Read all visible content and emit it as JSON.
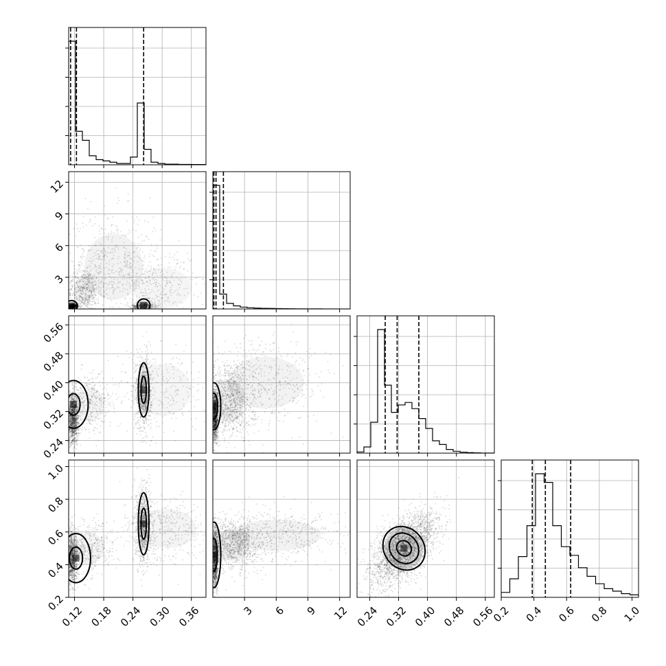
{
  "chart_data": {
    "type": "corner",
    "parameters": [
      {
        "ticks": [
          0.12,
          0.18,
          0.24,
          0.3,
          0.36
        ],
        "tick_labels": [
          "0.12",
          "0.18",
          "0.24",
          "0.30",
          "0.36"
        ],
        "range": [
          0.108,
          0.39
        ]
      },
      {
        "ticks": [
          3,
          6,
          9,
          12
        ],
        "tick_labels": [
          "3",
          "6",
          "9",
          "12"
        ],
        "range": [
          0.0,
          13.0
        ]
      },
      {
        "ticks": [
          0.24,
          0.32,
          0.4,
          0.48,
          0.56
        ],
        "tick_labels": [
          "0.24",
          "0.32",
          "0.40",
          "0.48",
          "0.56"
        ],
        "range": [
          0.205,
          0.585
        ]
      },
      {
        "ticks": [
          0.2,
          0.4,
          0.6,
          0.8,
          1.0
        ],
        "tick_labels": [
          "0.2",
          "0.4",
          "0.6",
          "0.8",
          "1.0"
        ],
        "range": [
          0.2,
          1.04
        ]
      }
    ],
    "histograms": [
      {
        "param": 0,
        "bin_edges_range": [
          0.108,
          0.39
        ],
        "counts": [
          96,
          26,
          19,
          7,
          4,
          3,
          2,
          1,
          1,
          6,
          48,
          12,
          2,
          1,
          0.5,
          0.5,
          0.3,
          0.3,
          0.2,
          0.2
        ],
        "quantiles": [
          0.112,
          0.124,
          0.262
        ]
      },
      {
        "param": 1,
        "bin_edges_range": [
          0.0,
          13.0
        ],
        "counts": [
          100,
          12,
          4.5,
          2.5,
          1.5,
          1.0,
          0.7,
          0.5,
          0.4,
          0.3,
          0.2,
          0.15,
          0.1,
          0.08,
          0.06,
          0.05,
          0.04,
          0.03,
          0.02,
          0.02
        ],
        "quantiles": [
          0.1,
          0.3,
          1.0
        ]
      },
      {
        "param": 2,
        "bin_edges_range": [
          0.205,
          0.585
        ],
        "counts": [
          1,
          5,
          25,
          100,
          55,
          33,
          39,
          41,
          36,
          28,
          20,
          10,
          7,
          3,
          1.5,
          0.8,
          0.4,
          0.2,
          0.1,
          0.1
        ],
        "quantiles": [
          0.283,
          0.316,
          0.376
        ]
      },
      {
        "param": 3,
        "bin_edges_range": [
          0.2,
          1.04
        ],
        "counts": [
          4,
          15,
          33,
          58,
          100,
          93,
          58,
          41,
          34,
          24,
          17,
          11,
          7,
          5,
          3,
          2
        ],
        "quantiles": [
          0.39,
          0.47,
          0.625
        ]
      }
    ],
    "pairs": [
      {
        "x": 0,
        "y": 1,
        "clusters": [
          {
            "cx": 0.115,
            "cy": 0.25,
            "sx": 0.006,
            "sy": 0.12,
            "weight": 0.3
          },
          {
            "cx": 0.14,
            "cy": 1.8,
            "sx": 0.018,
            "sy": 1.1,
            "weight": 0.2
          },
          {
            "cx": 0.2,
            "cy": 4.0,
            "sx": 0.05,
            "sy": 2.6,
            "weight": 0.22
          },
          {
            "cx": 0.262,
            "cy": 0.25,
            "sx": 0.012,
            "sy": 0.2,
            "weight": 0.18
          },
          {
            "cx": 0.3,
            "cy": 2.0,
            "sx": 0.05,
            "sy": 1.6,
            "weight": 0.1
          }
        ],
        "contours": [
          {
            "cx": 0.114,
            "cy": 0.3,
            "rx": 0.012,
            "ry": 0.5,
            "levels": [
              1.0
            ]
          },
          {
            "cx": 0.262,
            "cy": 0.35,
            "rx": 0.013,
            "ry": 0.6,
            "levels": [
              1.0
            ]
          }
        ]
      },
      {
        "x": 0,
        "y": 2,
        "clusters": [
          {
            "cx": 0.117,
            "cy": 0.3,
            "sx": 0.006,
            "sy": 0.035,
            "weight": 0.45
          },
          {
            "cx": 0.15,
            "cy": 0.34,
            "sx": 0.025,
            "sy": 0.04,
            "weight": 0.15
          },
          {
            "cx": 0.262,
            "cy": 0.375,
            "sx": 0.008,
            "sy": 0.05,
            "weight": 0.3
          },
          {
            "cx": 0.3,
            "cy": 0.38,
            "sx": 0.05,
            "sy": 0.06,
            "weight": 0.1
          }
        ],
        "contours": [
          {
            "cx": 0.118,
            "cy": 0.34,
            "rx": 0.03,
            "ry": 0.066,
            "levels": [
              0.45,
              1.0
            ]
          },
          {
            "cx": 0.262,
            "cy": 0.38,
            "rx": 0.011,
            "ry": 0.075,
            "levels": [
              0.5,
              1.0
            ]
          }
        ]
      },
      {
        "x": 1,
        "y": 2,
        "clusters": [
          {
            "cx": 0.2,
            "cy": 0.31,
            "sx": 0.15,
            "sy": 0.035,
            "weight": 0.45
          },
          {
            "cx": 1.5,
            "cy": 0.35,
            "sx": 1.2,
            "sy": 0.05,
            "weight": 0.35
          },
          {
            "cx": 5.0,
            "cy": 0.4,
            "sx": 3.0,
            "sy": 0.06,
            "weight": 0.2
          }
        ],
        "contours": [
          {
            "cx": 0.1,
            "cy": 0.335,
            "rx": 0.65,
            "ry": 0.065,
            "levels": [
              0.55,
              1.0
            ]
          }
        ]
      },
      {
        "x": 0,
        "y": 3,
        "clusters": [
          {
            "cx": 0.115,
            "cy": 0.44,
            "sx": 0.006,
            "sy": 0.08,
            "weight": 0.4
          },
          {
            "cx": 0.15,
            "cy": 0.5,
            "sx": 0.025,
            "sy": 0.08,
            "weight": 0.15
          },
          {
            "cx": 0.262,
            "cy": 0.64,
            "sx": 0.008,
            "sy": 0.12,
            "weight": 0.3
          },
          {
            "cx": 0.31,
            "cy": 0.62,
            "sx": 0.05,
            "sy": 0.1,
            "weight": 0.15
          }
        ],
        "contours": [
          {
            "cx": 0.123,
            "cy": 0.44,
            "rx": 0.03,
            "ry": 0.15,
            "levels": [
              0.45,
              1.0
            ]
          },
          {
            "cx": 0.262,
            "cy": 0.65,
            "rx": 0.011,
            "ry": 0.19,
            "levels": [
              0.5,
              1.0
            ]
          }
        ]
      },
      {
        "x": 1,
        "y": 3,
        "clusters": [
          {
            "cx": 0.2,
            "cy": 0.44,
            "sx": 0.15,
            "sy": 0.09,
            "weight": 0.45
          },
          {
            "cx": 1.8,
            "cy": 0.52,
            "sx": 1.4,
            "sy": 0.08,
            "weight": 0.35
          },
          {
            "cx": 6.0,
            "cy": 0.58,
            "sx": 3.5,
            "sy": 0.08,
            "weight": 0.2
          }
        ],
        "contours": [
          {
            "cx": 0.1,
            "cy": 0.46,
            "rx": 0.65,
            "ry": 0.2,
            "levels": [
              0.5,
              1.0
            ]
          }
        ]
      },
      {
        "x": 2,
        "y": 3,
        "clusters": [
          {
            "cx": 0.335,
            "cy": 0.5,
            "sx": 0.045,
            "sy": 0.11,
            "rho": 0.6,
            "weight": 1.0
          }
        ],
        "contours": [
          {
            "cx": 0.335,
            "cy": 0.5,
            "rx": 0.055,
            "ry": 0.14,
            "angle": -38,
            "levels": [
              0.35,
              0.7,
              1.0
            ]
          }
        ]
      }
    ]
  }
}
